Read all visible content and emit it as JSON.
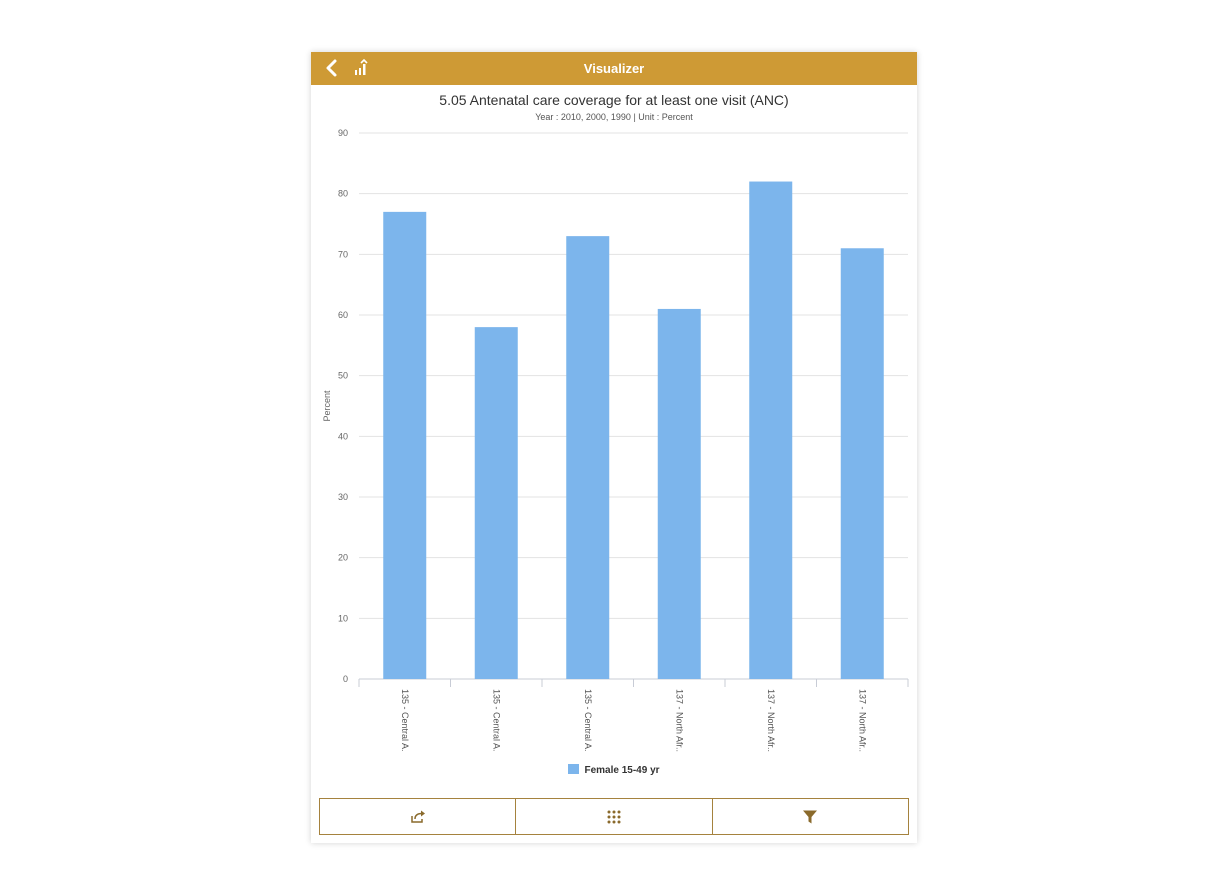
{
  "header": {
    "title": "Visualizer",
    "back_icon": "chevron-left-icon",
    "stats_icon": "sort-stats-icon",
    "color": "#ce9a35"
  },
  "chart_data": {
    "type": "bar",
    "title": "5.05 Antenatal care coverage for at least one visit (ANC)",
    "subtitle": "Year : 2010, 2000, 1990 | Unit : Percent",
    "xlabel": "",
    "ylabel": "Percent",
    "ylim": [
      0,
      90
    ],
    "yticks": [
      0,
      10,
      20,
      30,
      40,
      50,
      60,
      70,
      80,
      90
    ],
    "grid": true,
    "legend_position": "bottom",
    "categories": [
      "135 - Central A...",
      "135 - Central A...",
      "135 - Central A...",
      "137 - North Afr...",
      "137 - North Afr...",
      "137 - North Afr..."
    ],
    "series": [
      {
        "name": "Female 15-49 yr",
        "values": [
          77,
          58,
          73,
          61,
          82,
          71
        ],
        "color": "#7cb5ec"
      }
    ]
  },
  "toolbar": {
    "share_icon": "share-icon",
    "grid_icon": "grid-icon",
    "filter_icon": "filter-icon",
    "border_color": "#a5823e"
  }
}
